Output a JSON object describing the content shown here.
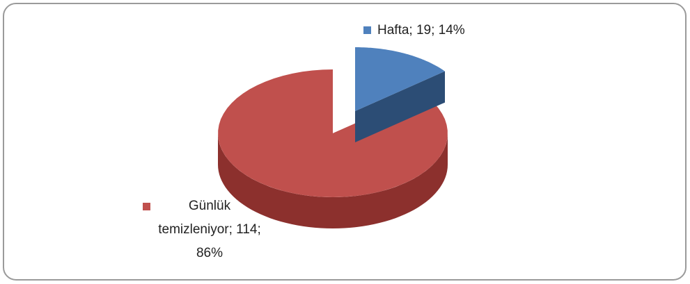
{
  "chart_data": {
    "type": "pie",
    "values": [
      19,
      114
    ],
    "value_labels": [
      "Hafta; 19; 14%",
      "Günlük temizleniyor; 114; 86%"
    ],
    "colors": [
      "#4f81bd",
      "#c0504d"
    ],
    "side_colors": [
      "#2c4d75",
      "#8c302d"
    ]
  }
}
